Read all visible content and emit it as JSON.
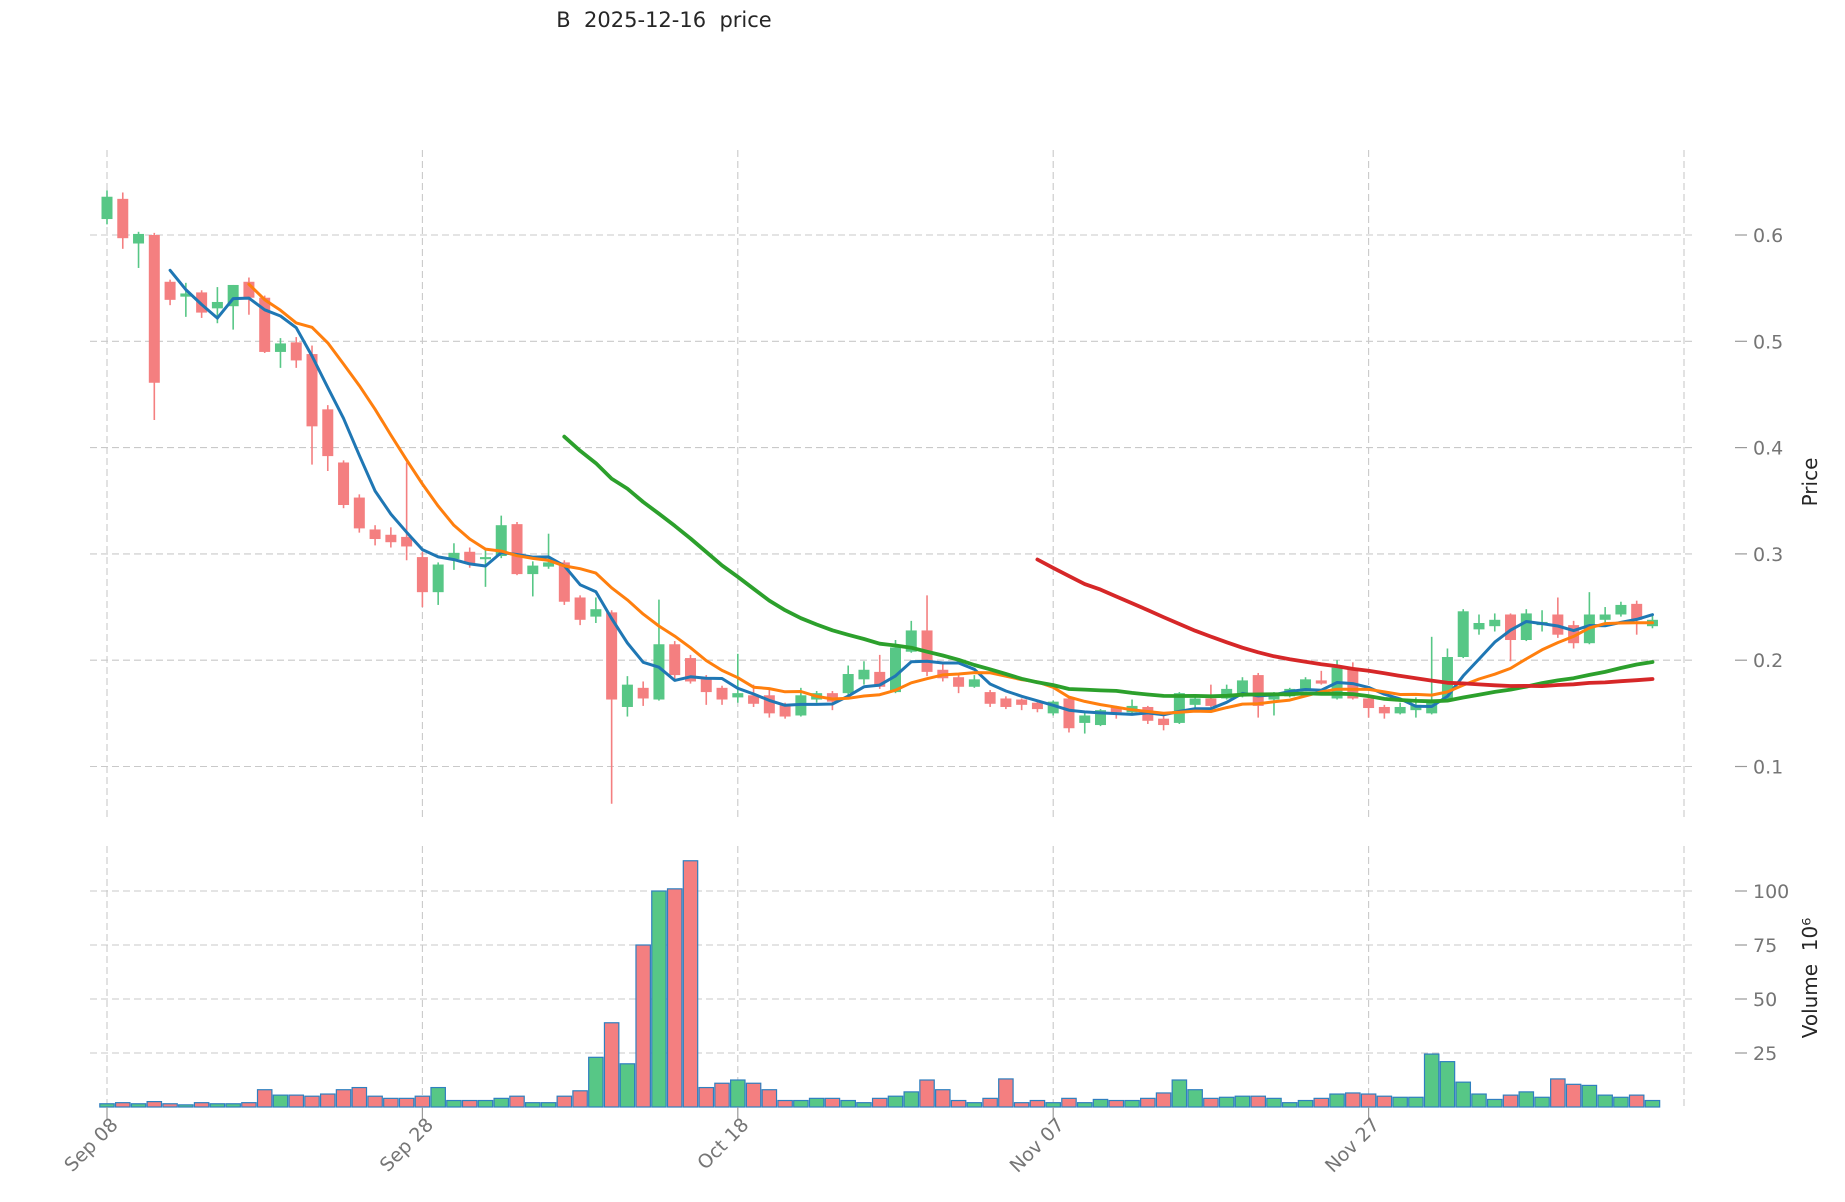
{
  "title": "B  2025-12-16  price",
  "y_axis": {
    "label": "Price",
    "ticks": [
      0.6,
      0.5,
      0.4,
      0.3,
      0.2,
      0.1
    ]
  },
  "y2_axis": {
    "label": "Volume  10⁶",
    "ticks": [
      100,
      75,
      50,
      25
    ]
  },
  "x_axis": {
    "tick_labels": [
      "Sep 08",
      "Sep 28",
      "Oct 18",
      "Nov 07",
      "Nov 27"
    ],
    "tick_days": [
      0,
      20,
      40,
      60,
      80
    ],
    "extra_gridline_day": 100
  },
  "colors": {
    "up": "#57c786",
    "down": "#f47f80",
    "volume_edge": "#2f7fbf",
    "grid": "#c9c9c9",
    "tick_text": "#757575",
    "ma_colors": [
      "#1f77b4",
      "#ff7f0e",
      "#2ca02c",
      "#d62728"
    ]
  },
  "chart_data": {
    "type": "candlestick",
    "panels": [
      "price",
      "volume"
    ],
    "title": "B  2025-12-16  price",
    "ylabel": "Price",
    "ylabel2": "Volume 10^6",
    "grid": true,
    "legend": "none",
    "price_axis_ticks": [
      0.6,
      0.5,
      0.4,
      0.3,
      0.2,
      0.1
    ],
    "volume_axis_ticks_millions": [
      100,
      75,
      50,
      25
    ],
    "x_tick_labels": [
      "Sep 08",
      "Sep 28",
      "Oct 18",
      "Nov 07",
      "Nov 27"
    ],
    "x_tick_day_indices": [
      0,
      20,
      40,
      60,
      80
    ],
    "moving_average_windows": [
      5,
      10,
      30,
      60
    ],
    "price_range_shown": [
      0.05,
      0.66
    ],
    "volume_range_shown_millions": [
      0,
      120
    ],
    "ohlc": [
      [
        0.615,
        0.642,
        0.61,
        0.636
      ],
      [
        0.634,
        0.64,
        0.587,
        0.597
      ],
      [
        0.592,
        0.603,
        0.569,
        0.601
      ],
      [
        0.6,
        0.602,
        0.426,
        0.461
      ],
      [
        0.556,
        0.558,
        0.534,
        0.539
      ],
      [
        0.542,
        0.555,
        0.523,
        0.545
      ],
      [
        0.546,
        0.548,
        0.522,
        0.527
      ],
      [
        0.531,
        0.551,
        0.517,
        0.537
      ],
      [
        0.533,
        0.553,
        0.511,
        0.553
      ],
      [
        0.556,
        0.56,
        0.525,
        0.541
      ],
      [
        0.541,
        0.543,
        0.489,
        0.49
      ],
      [
        0.49,
        0.503,
        0.475,
        0.498
      ],
      [
        0.499,
        0.504,
        0.475,
        0.482
      ],
      [
        0.488,
        0.496,
        0.384,
        0.42
      ],
      [
        0.436,
        0.44,
        0.378,
        0.392
      ],
      [
        0.386,
        0.388,
        0.343,
        0.346
      ],
      [
        0.353,
        0.356,
        0.32,
        0.324
      ],
      [
        0.323,
        0.327,
        0.308,
        0.314
      ],
      [
        0.318,
        0.325,
        0.306,
        0.311
      ],
      [
        0.316,
        0.386,
        0.294,
        0.307
      ],
      [
        0.297,
        0.302,
        0.25,
        0.264
      ],
      [
        0.264,
        0.292,
        0.252,
        0.29
      ],
      [
        0.295,
        0.31,
        0.285,
        0.301
      ],
      [
        0.302,
        0.306,
        0.287,
        0.291
      ],
      [
        0.295,
        0.305,
        0.269,
        0.297
      ],
      [
        0.298,
        0.336,
        0.296,
        0.327
      ],
      [
        0.328,
        0.33,
        0.28,
        0.281
      ],
      [
        0.281,
        0.293,
        0.26,
        0.289
      ],
      [
        0.288,
        0.319,
        0.286,
        0.292
      ],
      [
        0.292,
        0.294,
        0.252,
        0.255
      ],
      [
        0.259,
        0.261,
        0.233,
        0.238
      ],
      [
        0.241,
        0.259,
        0.235,
        0.248
      ],
      [
        0.245,
        0.247,
        0.065,
        0.163
      ],
      [
        0.156,
        0.185,
        0.147,
        0.177
      ],
      [
        0.174,
        0.18,
        0.157,
        0.164
      ],
      [
        0.163,
        0.257,
        0.162,
        0.215
      ],
      [
        0.215,
        0.218,
        0.181,
        0.186
      ],
      [
        0.202,
        0.205,
        0.178,
        0.18
      ],
      [
        0.183,
        0.186,
        0.158,
        0.17
      ],
      [
        0.174,
        0.176,
        0.158,
        0.163
      ],
      [
        0.165,
        0.206,
        0.16,
        0.169
      ],
      [
        0.167,
        0.177,
        0.156,
        0.159
      ],
      [
        0.167,
        0.172,
        0.146,
        0.15
      ],
      [
        0.158,
        0.16,
        0.145,
        0.147
      ],
      [
        0.148,
        0.174,
        0.147,
        0.167
      ],
      [
        0.163,
        0.171,
        0.16,
        0.169
      ],
      [
        0.169,
        0.171,
        0.153,
        0.161
      ],
      [
        0.169,
        0.195,
        0.167,
        0.187
      ],
      [
        0.182,
        0.199,
        0.177,
        0.191
      ],
      [
        0.189,
        0.205,
        0.173,
        0.175
      ],
      [
        0.17,
        0.219,
        0.169,
        0.212
      ],
      [
        0.208,
        0.237,
        0.207,
        0.228
      ],
      [
        0.228,
        0.261,
        0.185,
        0.189
      ],
      [
        0.191,
        0.196,
        0.18,
        0.183
      ],
      [
        0.184,
        0.186,
        0.169,
        0.175
      ],
      [
        0.175,
        0.186,
        0.174,
        0.182
      ],
      [
        0.17,
        0.172,
        0.156,
        0.159
      ],
      [
        0.164,
        0.166,
        0.154,
        0.156
      ],
      [
        0.163,
        0.164,
        0.153,
        0.158
      ],
      [
        0.16,
        0.162,
        0.151,
        0.154
      ],
      [
        0.15,
        0.162,
        0.148,
        0.161
      ],
      [
        0.164,
        0.165,
        0.132,
        0.136
      ],
      [
        0.141,
        0.151,
        0.131,
        0.148
      ],
      [
        0.139,
        0.154,
        0.138,
        0.153
      ],
      [
        0.156,
        0.157,
        0.145,
        0.151
      ],
      [
        0.151,
        0.163,
        0.15,
        0.157
      ],
      [
        0.156,
        0.157,
        0.14,
        0.143
      ],
      [
        0.145,
        0.148,
        0.134,
        0.139
      ],
      [
        0.141,
        0.17,
        0.14,
        0.169
      ],
      [
        0.158,
        0.166,
        0.154,
        0.164
      ],
      [
        0.164,
        0.177,
        0.156,
        0.157
      ],
      [
        0.164,
        0.177,
        0.163,
        0.173
      ],
      [
        0.166,
        0.184,
        0.165,
        0.181
      ],
      [
        0.186,
        0.188,
        0.146,
        0.157
      ],
      [
        0.163,
        0.17,
        0.148,
        0.169
      ],
      [
        0.166,
        0.174,
        0.165,
        0.173
      ],
      [
        0.173,
        0.184,
        0.172,
        0.182
      ],
      [
        0.181,
        0.19,
        0.177,
        0.178
      ],
      [
        0.164,
        0.2,
        0.163,
        0.193
      ],
      [
        0.193,
        0.198,
        0.163,
        0.164
      ],
      [
        0.164,
        0.166,
        0.146,
        0.155
      ],
      [
        0.156,
        0.158,
        0.145,
        0.15
      ],
      [
        0.15,
        0.16,
        0.149,
        0.156
      ],
      [
        0.153,
        0.165,
        0.146,
        0.158
      ],
      [
        0.15,
        0.222,
        0.149,
        0.163
      ],
      [
        0.163,
        0.211,
        0.162,
        0.203
      ],
      [
        0.203,
        0.248,
        0.202,
        0.246
      ],
      [
        0.229,
        0.243,
        0.224,
        0.235
      ],
      [
        0.232,
        0.244,
        0.227,
        0.238
      ],
      [
        0.243,
        0.244,
        0.199,
        0.219
      ],
      [
        0.219,
        0.248,
        0.218,
        0.244
      ],
      [
        0.233,
        0.247,
        0.227,
        0.236
      ],
      [
        0.243,
        0.259,
        0.221,
        0.224
      ],
      [
        0.233,
        0.237,
        0.211,
        0.216
      ],
      [
        0.216,
        0.264,
        0.215,
        0.243
      ],
      [
        0.238,
        0.25,
        0.232,
        0.243
      ],
      [
        0.243,
        0.255,
        0.241,
        0.252
      ],
      [
        0.253,
        0.256,
        0.224,
        0.238
      ],
      [
        0.232,
        0.242,
        0.23,
        0.238
      ]
    ],
    "volume_millions": [
      1.5,
      2,
      1.5,
      2.5,
      1.5,
      1,
      2,
      1.5,
      1.5,
      2,
      8,
      5.5,
      5.5,
      5,
      6,
      8,
      9,
      5,
      4,
      4,
      5,
      9,
      3,
      3,
      3,
      4,
      5,
      2,
      2,
      5,
      7.5,
      23,
      39,
      20,
      75,
      100,
      101,
      114,
      9,
      11,
      12.5,
      11,
      8,
      3,
      3,
      4,
      4,
      3,
      2,
      4,
      5,
      7,
      12.5,
      8,
      3,
      2,
      4,
      13,
      2,
      3,
      2,
      4,
      2,
      3.5,
      3,
      3,
      4,
      6.5,
      12.5,
      8,
      4,
      4.5,
      5,
      5,
      4,
      2,
      3,
      4,
      6,
      6.5,
      6,
      5,
      4.5,
      4.5,
      24.5,
      21,
      11.5,
      6,
      3.5,
      5.5,
      7,
      4.5,
      13,
      10.5,
      10,
      5.5,
      4.5,
      5.5,
      3
    ]
  }
}
